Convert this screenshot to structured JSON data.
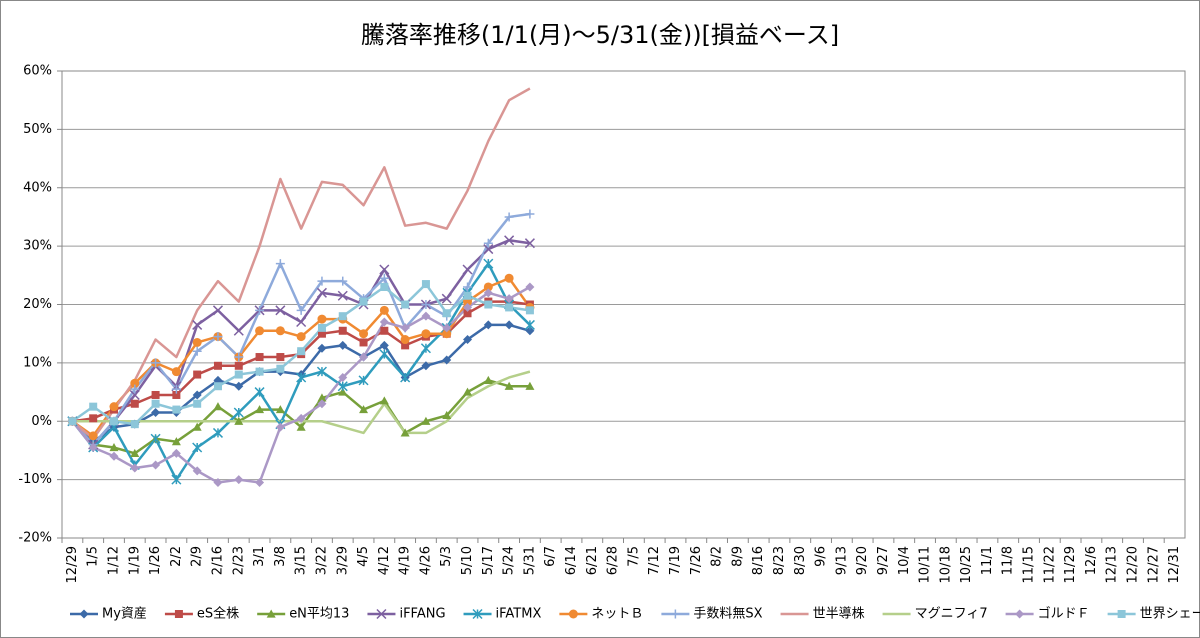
{
  "chart_data": {
    "type": "line",
    "title": "騰落率推移(1/1(月)～5/31(金))[損益ベース]",
    "categories": [
      "12/29",
      "1/5",
      "1/12",
      "1/19",
      "1/26",
      "2/2",
      "2/9",
      "2/16",
      "2/23",
      "3/1",
      "3/8",
      "3/15",
      "3/22",
      "3/29",
      "4/5",
      "4/12",
      "4/19",
      "4/26",
      "5/3",
      "5/10",
      "5/17",
      "5/24",
      "5/31",
      "6/7",
      "6/14",
      "6/21",
      "6/28",
      "7/5",
      "7/12",
      "7/19",
      "7/26",
      "8/2",
      "8/9",
      "8/16",
      "8/23",
      "8/30",
      "9/6",
      "9/13",
      "9/20",
      "9/27",
      "10/4",
      "10/11",
      "10/18",
      "10/25",
      "11/1",
      "11/8",
      "11/15",
      "11/22",
      "11/29",
      "12/6",
      "12/13",
      "12/20",
      "12/27",
      "12/31"
    ],
    "ylim": [
      -20,
      60
    ],
    "yticks": [
      {
        "value": -20,
        "label": "-20%"
      },
      {
        "value": -10,
        "label": "-10%"
      },
      {
        "value": 0,
        "label": "0%"
      },
      {
        "value": 10,
        "label": "10%"
      },
      {
        "value": 20,
        "label": "20%"
      },
      {
        "value": 30,
        "label": "30%"
      },
      {
        "value": 40,
        "label": "40%"
      },
      {
        "value": 50,
        "label": "50%"
      },
      {
        "value": 60,
        "label": "60%"
      }
    ],
    "grid": true,
    "legend": "bottom",
    "series": [
      {
        "name": "My資産",
        "color": "#3c6aa8",
        "marker": "diamond",
        "values": [
          0,
          -3.5,
          -1,
          -0.5,
          1.5,
          1.5,
          4.5,
          7,
          6,
          8.5,
          8.5,
          8,
          12.5,
          13,
          11,
          13,
          7.5,
          9.5,
          10.5,
          14,
          16.5,
          16.5,
          15.5,
          null,
          null,
          null,
          null,
          null,
          null,
          null,
          null,
          null,
          null,
          null,
          null,
          null,
          null,
          null,
          null,
          null,
          null,
          null,
          null,
          null,
          null,
          null,
          null,
          null,
          null,
          null,
          null,
          null,
          null,
          null
        ]
      },
      {
        "name": "eS全株",
        "color": "#be4b48",
        "marker": "square",
        "values": [
          0,
          0.5,
          2,
          3,
          4.5,
          4.5,
          8,
          9.5,
          9.5,
          11,
          11,
          11.5,
          15,
          15.5,
          13.5,
          15.5,
          13,
          14.5,
          15,
          18.5,
          20.5,
          20.5,
          20,
          null,
          null,
          null,
          null,
          null,
          null,
          null,
          null,
          null,
          null,
          null,
          null,
          null,
          null,
          null,
          null,
          null,
          null,
          null,
          null,
          null,
          null,
          null,
          null,
          null,
          null,
          null,
          null,
          null,
          null,
          null
        ]
      },
      {
        "name": "eN平均13",
        "color": "#77a03a",
        "marker": "triangle",
        "values": [
          0,
          -4,
          -4.5,
          -5.5,
          -3,
          -3.5,
          -1,
          2.5,
          0,
          2,
          2,
          -1,
          4,
          5,
          2,
          3.5,
          -2,
          0,
          1,
          5,
          7,
          6,
          6,
          null,
          null,
          null,
          null,
          null,
          null,
          null,
          null,
          null,
          null,
          null,
          null,
          null,
          null,
          null,
          null,
          null,
          null,
          null,
          null,
          null,
          null,
          null,
          null,
          null,
          null,
          null,
          null,
          null,
          null,
          null
        ]
      },
      {
        "name": "iFFANG",
        "color": "#7d60a0",
        "marker": "x",
        "values": [
          0,
          -4,
          0,
          4.5,
          9.5,
          6,
          16.5,
          19,
          15.5,
          19,
          19,
          17,
          22,
          21.5,
          20,
          26,
          20,
          20,
          21,
          26,
          29.5,
          31,
          30.5,
          null,
          null,
          null,
          null,
          null,
          null,
          null,
          null,
          null,
          null,
          null,
          null,
          null,
          null,
          null,
          null,
          null,
          null,
          null,
          null,
          null,
          null,
          null,
          null,
          null,
          null,
          null,
          null,
          null,
          null,
          null
        ]
      },
      {
        "name": "iFATMX",
        "color": "#2f9cbd",
        "marker": "star",
        "values": [
          0,
          -4.5,
          -1,
          -7.5,
          -3,
          -10,
          -4.5,
          -2,
          1.5,
          5,
          -0.5,
          7.5,
          8.5,
          6,
          7,
          11.5,
          7.5,
          12.5,
          16,
          22,
          27,
          20,
          16.5,
          null,
          null,
          null,
          null,
          null,
          null,
          null,
          null,
          null,
          null,
          null,
          null,
          null,
          null,
          null,
          null,
          null,
          null,
          null,
          null,
          null,
          null,
          null,
          null,
          null,
          null,
          null,
          null,
          null,
          null,
          null
        ]
      },
      {
        "name": "ネットＢ",
        "color": "#f08a32",
        "marker": "circle",
        "values": [
          0,
          -2.5,
          2.5,
          6.5,
          10,
          8.5,
          13.5,
          14.5,
          11,
          15.5,
          15.5,
          14.5,
          17.5,
          17.5,
          15,
          19,
          14,
          15,
          15,
          20.5,
          23,
          24.5,
          19.5,
          null,
          null,
          null,
          null,
          null,
          null,
          null,
          null,
          null,
          null,
          null,
          null,
          null,
          null,
          null,
          null,
          null,
          null,
          null,
          null,
          null,
          null,
          null,
          null,
          null,
          null,
          null,
          null,
          null,
          null,
          null
        ]
      },
      {
        "name": "手数料無SX",
        "color": "#8eaadb",
        "marker": "plus",
        "values": [
          0,
          -4,
          0,
          5.5,
          10,
          5.5,
          12,
          14.5,
          11,
          19,
          27,
          19,
          24,
          24,
          21,
          24.5,
          16,
          20,
          18,
          23,
          30.5,
          35,
          35.5,
          null,
          null,
          null,
          null,
          null,
          null,
          null,
          null,
          null,
          null,
          null,
          null,
          null,
          null,
          null,
          null,
          null,
          null,
          null,
          null,
          null,
          null,
          null,
          null,
          null,
          null,
          null,
          null,
          null,
          null,
          null
        ]
      },
      {
        "name": "世半導株",
        "color": "#d99694",
        "marker": "none",
        "values": [
          0,
          -3,
          2,
          7,
          14,
          11,
          19,
          24,
          20.5,
          30,
          41.5,
          33,
          41,
          40.5,
          37,
          43.5,
          33.5,
          34,
          33,
          39.5,
          48,
          55,
          57,
          null,
          null,
          null,
          null,
          null,
          null,
          null,
          null,
          null,
          null,
          null,
          null,
          null,
          null,
          null,
          null,
          null,
          null,
          null,
          null,
          null,
          null,
          null,
          null,
          null,
          null,
          null,
          null,
          null,
          null,
          null
        ]
      },
      {
        "name": "マグニフィ7",
        "color": "#b5cf8a",
        "marker": "none",
        "values": [
          0,
          0,
          0,
          0,
          0,
          0,
          0,
          0,
          0,
          0,
          0,
          0,
          0,
          -1,
          -2,
          3,
          -2,
          -2,
          0,
          4,
          6,
          7.5,
          8.5,
          null,
          null,
          null,
          null,
          null,
          null,
          null,
          null,
          null,
          null,
          null,
          null,
          null,
          null,
          null,
          null,
          null,
          null,
          null,
          null,
          null,
          null,
          null,
          null,
          null,
          null,
          null,
          null,
          null,
          null,
          null
        ]
      },
      {
        "name": "ゴルドＦ",
        "color": "#ab98c6",
        "marker": "diamond",
        "values": [
          0,
          -4.5,
          -6,
          -8,
          -7.5,
          -5.5,
          -8.5,
          -10.5,
          -10,
          -10.5,
          -1,
          0.5,
          3,
          7.5,
          11,
          17,
          16,
          18,
          16,
          19.5,
          22,
          21,
          23,
          null,
          null,
          null,
          null,
          null,
          null,
          null,
          null,
          null,
          null,
          null,
          null,
          null,
          null,
          null,
          null,
          null,
          null,
          null,
          null,
          null,
          null,
          null,
          null,
          null,
          null,
          null,
          null,
          null,
          null,
          null
        ]
      },
      {
        "name": "世界シェール",
        "color": "#8cc6d9",
        "marker": "square",
        "values": [
          0,
          2.5,
          0,
          -0.5,
          3,
          2,
          3,
          6,
          8,
          8.5,
          9,
          12,
          16,
          18,
          20.5,
          23,
          20,
          23.5,
          18.5,
          21.5,
          20,
          19.5,
          19,
          null,
          null,
          null,
          null,
          null,
          null,
          null,
          null,
          null,
          null,
          null,
          null,
          null,
          null,
          null,
          null,
          null,
          null,
          null,
          null,
          null,
          null,
          null,
          null,
          null,
          null,
          null,
          null,
          null,
          null,
          null
        ]
      }
    ]
  }
}
